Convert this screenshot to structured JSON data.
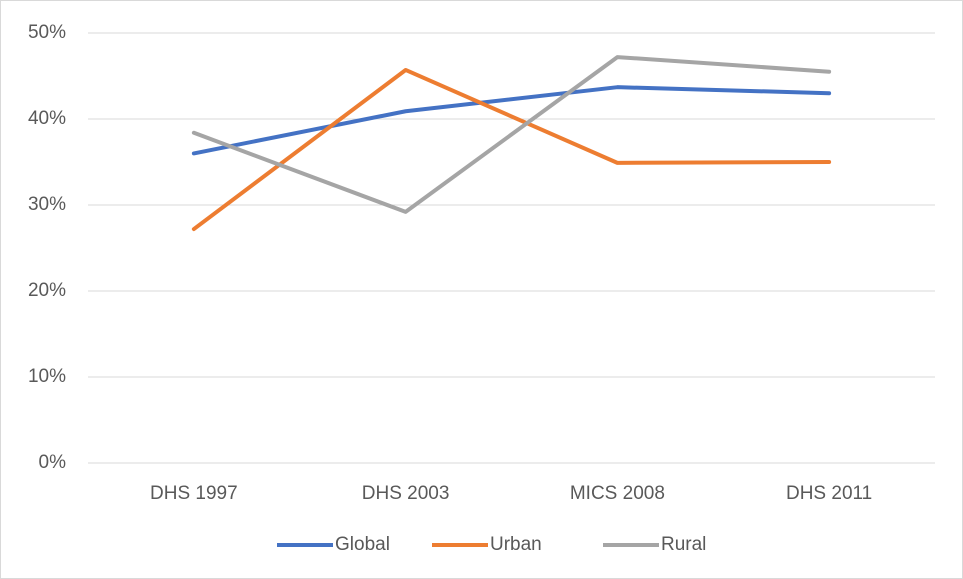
{
  "chart_data": {
    "type": "line",
    "categories": [
      "DHS 1997",
      "DHS 2003",
      "MICS 2008",
      "DHS 2011"
    ],
    "series": [
      {
        "name": "Global",
        "color": "#4472c4",
        "values": [
          36.0,
          40.9,
          43.7,
          43.0
        ]
      },
      {
        "name": "Urban",
        "color": "#ed7d31",
        "values": [
          27.2,
          45.7,
          34.9,
          35.0
        ]
      },
      {
        "name": "Rural",
        "color": "#a5a5a5",
        "values": [
          38.4,
          29.2,
          47.2,
          45.5
        ]
      }
    ],
    "ylim": [
      0,
      50
    ],
    "yticks": [
      {
        "value": 0,
        "label": "0%"
      },
      {
        "value": 10,
        "label": "10%"
      },
      {
        "value": 20,
        "label": "20%"
      },
      {
        "value": 30,
        "label": "30%"
      },
      {
        "value": 40,
        "label": "40%"
      },
      {
        "value": 50,
        "label": "50%"
      }
    ],
    "grid": true,
    "legend": "bottom"
  }
}
